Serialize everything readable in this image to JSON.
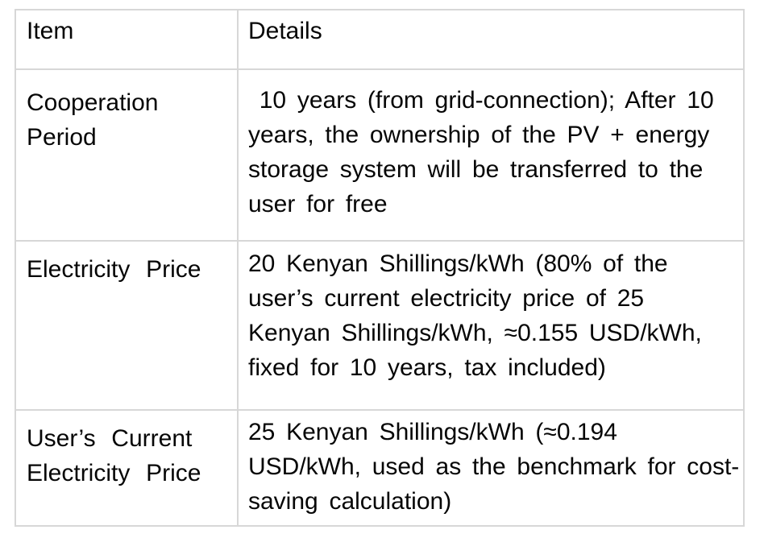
{
  "page": {
    "background_color": "#ffffff",
    "text_color": "#060606",
    "table_border_color": "#d7d7d7"
  },
  "table": {
    "header": {
      "item": "Item",
      "details": "Details"
    },
    "rows": [
      {
        "item": "Cooperation Period",
        "details": "10 years (from grid-connection); After 10 years, the ownership of the PV + energy storage system will be transferred to the user for free",
        "details_lines": [
          " 10 years (from grid-connection); After 10",
          "years, the ownership of the PV + energy",
          "storage system will be transferred to the",
          "user for free"
        ]
      },
      {
        "item": "Electricity Price",
        "details": "20 Kenyan Shillings/kWh (80% of the user’s current electricity price of 25 Kenyan Shillings/kWh, ≈0.155 USD/kWh, fixed for 10 years, tax included)",
        "details_lines": [
          "20 Kenyan Shillings/kWh (80% of the",
          "user’s current electricity price of 25",
          "Kenyan Shillings/kWh, ≈0.155 USD/kWh,",
          "fixed for 10 years, tax included)"
        ]
      },
      {
        "item": "User’s Current Electricity Price",
        "details": "25 Kenyan Shillings/kWh (≈0.194 USD/kWh, used as the benchmark for cost-saving calculation)",
        "details_lines": [
          "25 Kenyan Shillings/kWh (≈0.194",
          "USD/kWh, used as the benchmark for cost-",
          "saving calculation)"
        ]
      }
    ]
  }
}
